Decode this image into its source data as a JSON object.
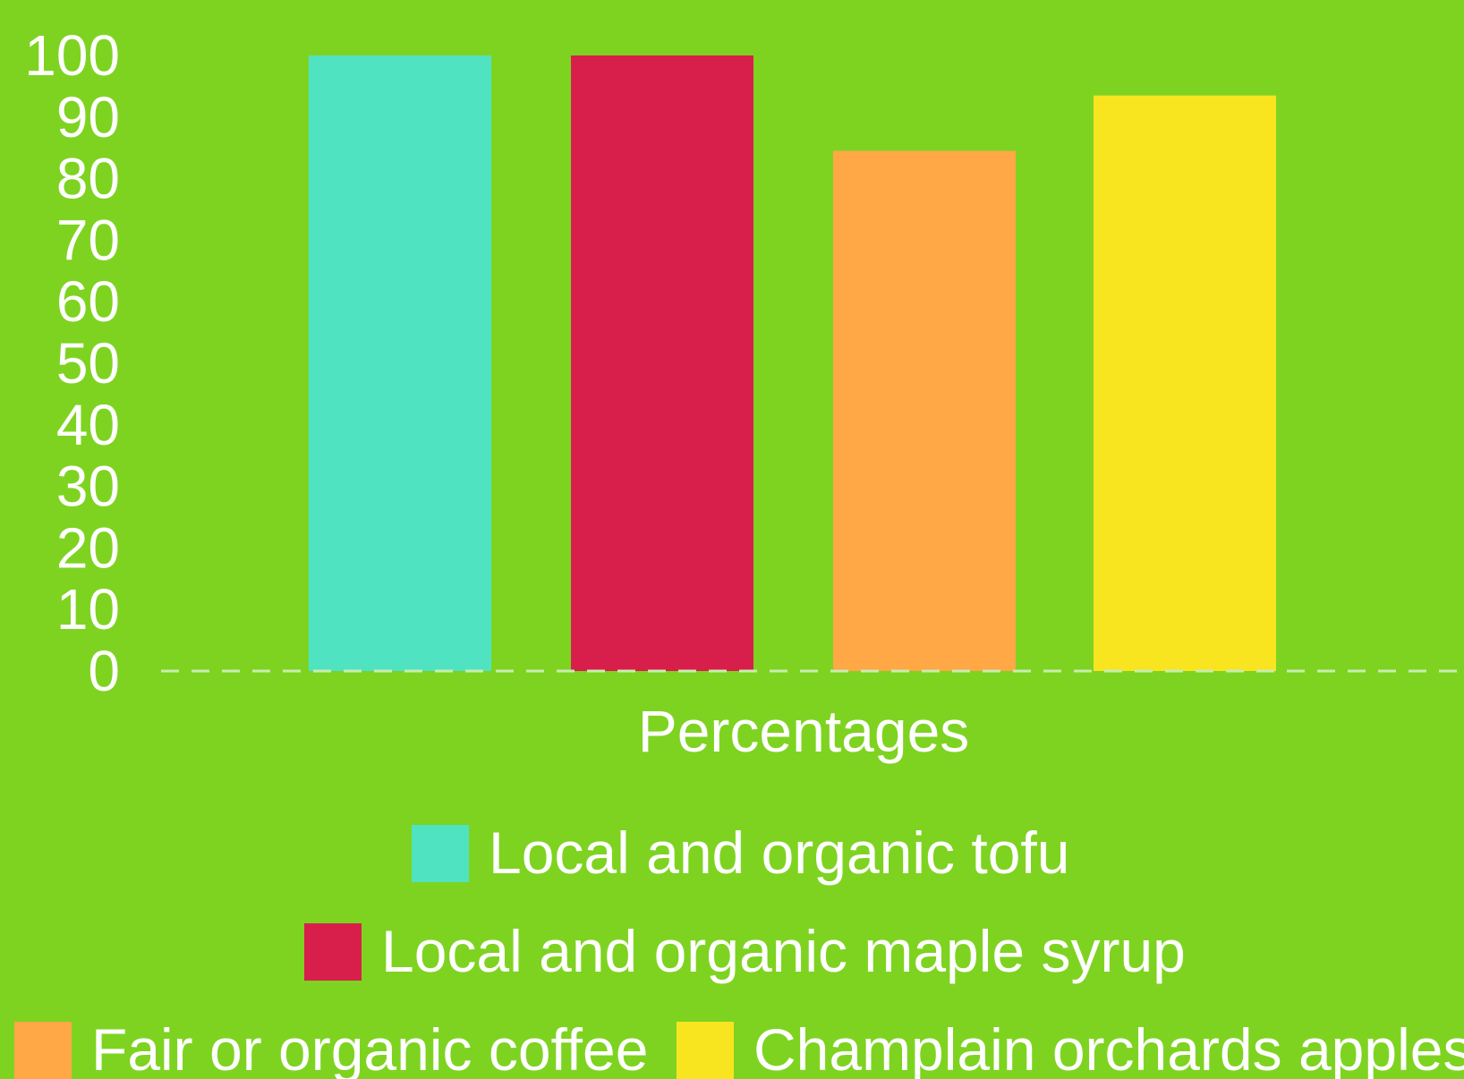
{
  "chart_data": {
    "type": "bar",
    "title": "",
    "xlabel": "Percentages",
    "ylabel": "",
    "ylim": [
      0,
      100
    ],
    "y_ticks": [
      "0",
      "10",
      "20",
      "30",
      "40",
      "50",
      "60",
      "70",
      "80",
      "90",
      "100"
    ],
    "grid": false,
    "legend_position": "bottom",
    "series": [
      {
        "name": "Local and organic tofu",
        "value": 100,
        "color": "#50e3c2"
      },
      {
        "name": "Local and organic maple syrup",
        "value": 100,
        "color": "#d81f4b"
      },
      {
        "name": "Fair or organic coffee",
        "value": 84.5,
        "color": "#ffa845"
      },
      {
        "name": "Champlain orchards apples",
        "value": 93.5,
        "color": "#f8e520"
      }
    ]
  },
  "colors": {
    "background": "#7ed321",
    "text": "#ffffff",
    "baseline": "#c9ecb0"
  }
}
